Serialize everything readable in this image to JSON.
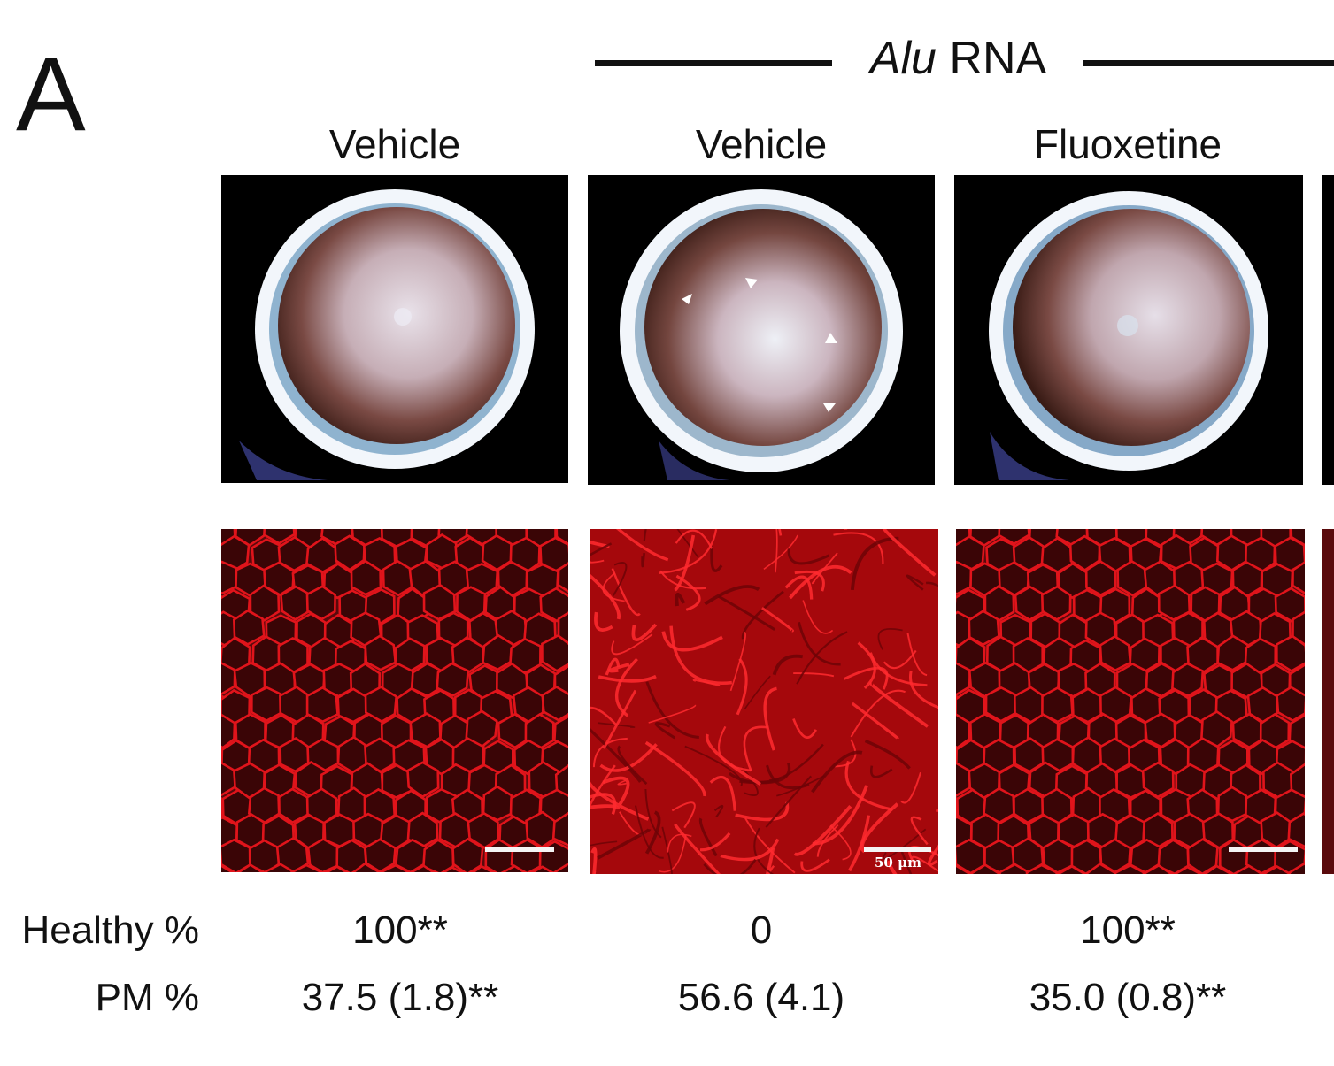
{
  "figure": {
    "panel_letter": "A",
    "group_label_italic": "Alu",
    "group_label_rest": " RNA",
    "columns": [
      {
        "title": "Vehicle",
        "healthy": "100**",
        "pm": "37.5 (1.8)**",
        "scale_text": ""
      },
      {
        "title": "Vehicle",
        "healthy": "0",
        "pm": "56.6 (4.1)",
        "scale_text": "50 μm"
      },
      {
        "title": "Fluoxetine",
        "healthy": "100**",
        "pm": "35.0 (0.8)**",
        "scale_text": ""
      }
    ],
    "row_labels": {
      "healthy": "Healthy %",
      "pm": "PM %"
    }
  },
  "colors": {
    "stain_red": "#e0141b",
    "fundus_rim": "#f2f6fb"
  }
}
